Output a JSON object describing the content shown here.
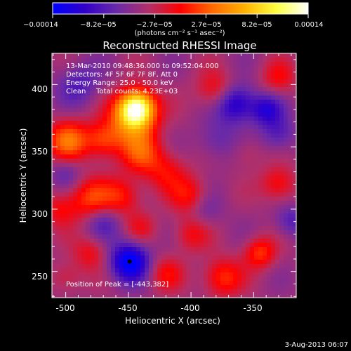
{
  "colorbar": {
    "tick_labels": [
      "−0.00014",
      "−8.2e−05",
      "−2.7e−05",
      "2.7e−05",
      "8.2e−05",
      "0.00014"
    ],
    "unit_label": "(photons cm⁻² s⁻¹ asec⁻²)",
    "stops": [
      "#0000ff",
      "#3000c8",
      "#6a2aa8",
      "#b0306a",
      "#ff0000",
      "#ff6a00",
      "#ffb000",
      "#ffff40",
      "#ffffff"
    ]
  },
  "chart_data": {
    "type": "heatmap",
    "title": "Reconstructed RHESSI Image",
    "xlabel": "Heliocentric X (arcsec)",
    "ylabel": "Heliocentric Y (arcsec)",
    "xlim": [
      -511,
      -316
    ],
    "ylim": [
      229,
      425
    ],
    "x_ticks": [
      -500,
      -450,
      -400,
      -350
    ],
    "y_ticks": [
      250,
      300,
      350,
      400
    ],
    "x_tick_labels": [
      "-500",
      "-450",
      "-400",
      "-350"
    ],
    "y_tick_labels": [
      "250",
      "300",
      "350",
      "400"
    ],
    "vlim": [
      -0.00014,
      0.00014
    ],
    "annotations": [
      "13-Mar-2010 09:48:36.000 to 09:52:04.000",
      "Detectors: 4F 5F 6F 7F 8F, Att 0",
      "Energy Range: 25.0 - 50.0 keV",
      "Clean",
      "Total counts: 4.23E+03"
    ],
    "peak_label": "Position of Peak = [-443,382]",
    "peak": [
      -443,
      382
    ],
    "marker": [
      -449,
      258
    ],
    "blobs": [
      {
        "x": -443,
        "y": 382,
        "v": 0.00014,
        "s": 10
      },
      {
        "x": -447,
        "y": 372,
        "v": 9e-05,
        "s": 13
      },
      {
        "x": -498,
        "y": 355,
        "v": 8e-05,
        "s": 12
      },
      {
        "x": -470,
        "y": 355,
        "v": 6e-05,
        "s": 10
      },
      {
        "x": -440,
        "y": 345,
        "v": 6e-05,
        "s": 12
      },
      {
        "x": -420,
        "y": 330,
        "v": 4e-05,
        "s": 12
      },
      {
        "x": -480,
        "y": 308,
        "v": 6e-05,
        "s": 12
      },
      {
        "x": -455,
        "y": 310,
        "v": 5e-05,
        "s": 11
      },
      {
        "x": -505,
        "y": 300,
        "v": 4e-05,
        "s": 10
      },
      {
        "x": -400,
        "y": 310,
        "v": 5e-05,
        "s": 11
      },
      {
        "x": -400,
        "y": 280,
        "v": 4e-05,
        "s": 10
      },
      {
        "x": -380,
        "y": 395,
        "v": 5e-05,
        "s": 11
      },
      {
        "x": -330,
        "y": 405,
        "v": 4e-05,
        "s": 10
      },
      {
        "x": -330,
        "y": 320,
        "v": 5e-05,
        "s": 10
      },
      {
        "x": -345,
        "y": 265,
        "v": 6e-05,
        "s": 9
      },
      {
        "x": -375,
        "y": 245,
        "v": 6e-05,
        "s": 11
      },
      {
        "x": -420,
        "y": 248,
        "v": 4e-05,
        "s": 10
      },
      {
        "x": -480,
        "y": 265,
        "v": 4e-05,
        "s": 10
      },
      {
        "x": -440,
        "y": 285,
        "v": 3e-05,
        "s": 9
      },
      {
        "x": -500,
        "y": 245,
        "v": 3e-05,
        "s": 9
      },
      {
        "x": -355,
        "y": 345,
        "v": 2e-05,
        "s": 9
      },
      {
        "x": -365,
        "y": 385,
        "v": -8e-05,
        "s": 11
      },
      {
        "x": -340,
        "y": 380,
        "v": -6e-05,
        "s": 9
      },
      {
        "x": -449,
        "y": 258,
        "v": -0.0001,
        "s": 11
      },
      {
        "x": -490,
        "y": 400,
        "v": -4e-05,
        "s": 12
      },
      {
        "x": -330,
        "y": 360,
        "v": -4e-05,
        "s": 10
      },
      {
        "x": -380,
        "y": 355,
        "v": -3e-05,
        "s": 11
      },
      {
        "x": -390,
        "y": 300,
        "v": -3e-05,
        "s": 10
      },
      {
        "x": -470,
        "y": 290,
        "v": -4e-05,
        "s": 10
      },
      {
        "x": -320,
        "y": 290,
        "v": -4e-05,
        "s": 9
      },
      {
        "x": -500,
        "y": 330,
        "v": -3e-05,
        "s": 9
      }
    ]
  },
  "footer": {
    "date": "3-Aug-2013 06:07"
  }
}
